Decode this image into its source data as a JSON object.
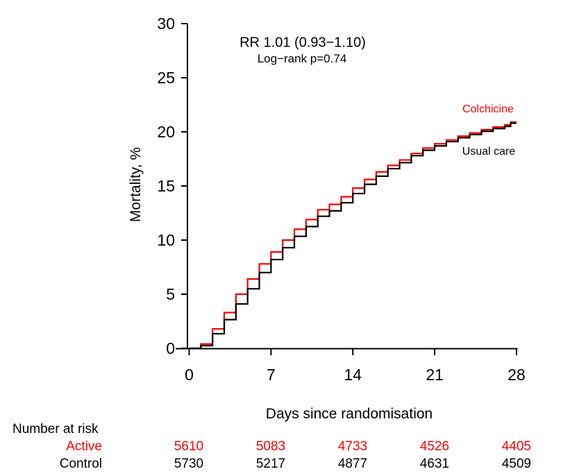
{
  "chart_data": {
    "type": "line",
    "step": true,
    "title": "",
    "xlabel": "Days since randomisation",
    "ylabel": "Mortality, %",
    "xlim": [
      0,
      28
    ],
    "ylim": [
      0,
      30
    ],
    "x_ticks": [
      0,
      7,
      14,
      21,
      28
    ],
    "y_ticks": [
      0,
      5,
      10,
      15,
      20,
      25,
      30
    ],
    "grid": false,
    "legend_position": "curve-end",
    "x": [
      0,
      1,
      2,
      3,
      4,
      5,
      6,
      7,
      8,
      9,
      10,
      11,
      12,
      13,
      14,
      15,
      16,
      17,
      18,
      19,
      20,
      21,
      22,
      23,
      24,
      25,
      26,
      27,
      28
    ],
    "series": [
      {
        "name": "Colchicine",
        "color": "#ff0000",
        "values": [
          0,
          0.4,
          1.8,
          3.3,
          5.0,
          6.4,
          7.8,
          8.9,
          10.0,
          11.0,
          11.9,
          12.8,
          13.3,
          14.0,
          14.8,
          15.6,
          16.3,
          16.9,
          17.4,
          18.0,
          18.5,
          18.9,
          19.25,
          19.6,
          19.9,
          20.2,
          20.45,
          20.65,
          20.9
        ]
      },
      {
        "name": "Usual care",
        "color": "#000000",
        "values": [
          0,
          0.25,
          1.35,
          2.65,
          4.1,
          5.5,
          7.0,
          8.2,
          9.3,
          10.35,
          11.25,
          12.2,
          12.7,
          13.45,
          14.3,
          15.15,
          15.9,
          16.6,
          17.15,
          17.8,
          18.3,
          18.7,
          19.1,
          19.45,
          19.75,
          20.05,
          20.3,
          20.5,
          20.8
        ]
      }
    ],
    "annotations": {
      "rr": "RR 1.01 (0.93−1.10)",
      "logrank": "Log−rank p=0.74"
    }
  },
  "risk_table": {
    "title": "Number at risk",
    "columns_days": [
      0,
      7,
      14,
      21,
      28
    ],
    "rows": [
      {
        "label": "Active",
        "color": "#ff0000",
        "values": [
          "5610",
          "5083",
          "4733",
          "4526",
          "4405"
        ]
      },
      {
        "label": "Control",
        "color": "#000000",
        "values": [
          "5730",
          "5217",
          "4877",
          "4631",
          "4509"
        ]
      }
    ]
  }
}
